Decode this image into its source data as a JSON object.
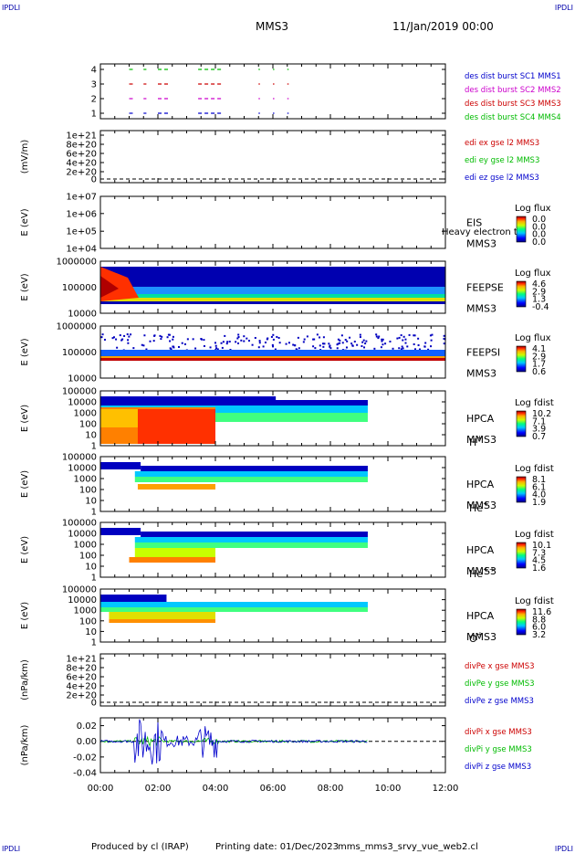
{
  "corner_label": "IPDLI",
  "header": {
    "mission": "MMS3",
    "datetime": "11/Jan/2019 00:00"
  },
  "footer": {
    "produced_by": "Produced by cl (IRAP)",
    "printing_date": "Printing date: 01/Dec/2023",
    "script": "mms_mms3_srvy_vue_web2.cl"
  },
  "time_axis": {
    "ticks": [
      "00:00",
      "02:00",
      "04:00",
      "06:00",
      "08:00",
      "10:00",
      "12:00"
    ],
    "range_hours": [
      0,
      12
    ]
  },
  "colors": {
    "mms1": "#0000cc",
    "mms2": "#cc00cc",
    "mms3": "#cc0000",
    "mms4": "#00bb00",
    "dashed": "#000000"
  },
  "panels": [
    {
      "id": "burst",
      "y_ticks": [
        "4",
        "3",
        "2",
        "1"
      ],
      "legend": [
        {
          "text": "des dist burst SC1 MMS1",
          "color": "#0000cc"
        },
        {
          "text": "des dist burst SC2 MMS2",
          "color": "#cc00cc"
        },
        {
          "text": "des dist burst SC3 MMS3",
          "color": "#cc0000"
        },
        {
          "text": "des dist burst SC4 MMS4",
          "color": "#00bb00"
        }
      ]
    },
    {
      "id": "edi",
      "ylabel": "(mV/m)",
      "y_ticks": [
        "1e+21",
        "8e+20",
        "6e+20",
        "4e+20",
        "2e+20",
        "0"
      ],
      "legend": [
        {
          "text": "edi ex gse l2 MMS3",
          "color": "#cc0000"
        },
        {
          "text": "edi ey gse l2 MMS3",
          "color": "#00bb00"
        },
        {
          "text": "edi ez gse l2 MMS3",
          "color": "#0000cc"
        }
      ]
    },
    {
      "id": "eis",
      "ylabel": "E (eV)",
      "y_ticks": [
        "1e+07",
        "1e+06",
        "1e+05",
        "1e+04"
      ],
      "labels": [
        "EIS",
        "MMS3"
      ],
      "overlay": "Heavy electron to",
      "colorbar": {
        "title": "Log flux",
        "ticks": [
          "0.0",
          "0.0",
          "0.0",
          "0.0"
        ]
      }
    },
    {
      "id": "feepse",
      "ylabel": "E (eV)",
      "y_ticks": [
        "1000000",
        "100000",
        "10000"
      ],
      "labels": [
        "FEEPSE",
        "MMS3"
      ],
      "colorbar": {
        "title": "Log flux",
        "ticks": [
          "4.6",
          "2.9",
          "1.3",
          "-0.4"
        ]
      }
    },
    {
      "id": "feepsi",
      "ylabel": "E (eV)",
      "y_ticks": [
        "1000000",
        "100000",
        "10000"
      ],
      "labels": [
        "FEEPSI",
        "MMS3"
      ],
      "colorbar": {
        "title": "Log flux",
        "ticks": [
          "4.1",
          "2.9",
          "1.7",
          "0.6"
        ]
      }
    },
    {
      "id": "hpca_h",
      "ylabel": "E (eV)",
      "y_ticks": [
        "100000",
        "10000",
        "1000",
        "100",
        "10",
        "1"
      ],
      "labels": [
        "HPCA",
        "MMS3"
      ],
      "species": "H",
      "charge": "+",
      "colorbar": {
        "title": "Log fdist",
        "ticks": [
          "10.2",
          "7.1",
          "3.9",
          "0.7"
        ]
      }
    },
    {
      "id": "hpca_he",
      "ylabel": "E (eV)",
      "y_ticks": [
        "100000",
        "10000",
        "1000",
        "100",
        "10",
        "1"
      ],
      "labels": [
        "HPCA",
        "MMS3"
      ],
      "species": "He",
      "charge": "+",
      "colorbar": {
        "title": "Log fdist",
        "ticks": [
          "8.1",
          "6.1",
          "4.0",
          "1.9"
        ]
      }
    },
    {
      "id": "hpca_he2",
      "ylabel": "E (eV)",
      "y_ticks": [
        "100000",
        "10000",
        "1000",
        "100",
        "10",
        "1"
      ],
      "labels": [
        "HPCA",
        "MMS3"
      ],
      "species": "He",
      "charge": "++",
      "colorbar": {
        "title": "Log fdist",
        "ticks": [
          "10.1",
          "7.3",
          "4.5",
          "1.6"
        ]
      }
    },
    {
      "id": "hpca_o",
      "ylabel": "E (eV)",
      "y_ticks": [
        "100000",
        "10000",
        "1000",
        "100",
        "10",
        "1"
      ],
      "labels": [
        "HPCA",
        "MMS3"
      ],
      "species": "O",
      "charge": "+",
      "colorbar": {
        "title": "Log fdist",
        "ticks": [
          "11.6",
          "8.8",
          "6.0",
          "3.2"
        ]
      }
    },
    {
      "id": "divpe",
      "ylabel": "(nPa/km)",
      "y_ticks": [
        "1e+21",
        "8e+20",
        "6e+20",
        "4e+20",
        "2e+20",
        "0"
      ],
      "legend": [
        {
          "text": "divPe x gse MMS3",
          "color": "#cc0000"
        },
        {
          "text": "divPe y gse MMS3",
          "color": "#00bb00"
        },
        {
          "text": "divPe z gse MMS3",
          "color": "#0000cc"
        }
      ]
    },
    {
      "id": "divpi",
      "ylabel": "(nPa/km)",
      "y_ticks": [
        "0.02",
        "0.00",
        "-0.02",
        "-0.04"
      ],
      "legend": [
        {
          "text": "divPi x gse MMS3",
          "color": "#cc0000"
        },
        {
          "text": "divPi y gse MMS3",
          "color": "#00bb00"
        },
        {
          "text": "divPi z gse MMS3",
          "color": "#0000cc"
        }
      ]
    }
  ],
  "chart_data": {
    "type": "line",
    "title": "MMS3",
    "x_ticks": [
      "00:00",
      "02:00",
      "04:00",
      "06:00",
      "08:00",
      "10:00",
      "12:00"
    ],
    "xlim_hours": [
      0,
      12
    ],
    "burst_intervals": [
      {
        "spacecraft": 1,
        "segments": [
          [
            1.0,
            1.2
          ],
          [
            1.5,
            1.6
          ],
          [
            2.0,
            2.4
          ],
          [
            3.4,
            4.2
          ],
          [
            5.5,
            5.55
          ],
          [
            6.0,
            6.05
          ],
          [
            6.5,
            6.55
          ]
        ]
      },
      {
        "spacecraft": 2,
        "segments": [
          [
            1.0,
            1.2
          ],
          [
            1.5,
            1.6
          ],
          [
            2.0,
            2.4
          ],
          [
            3.4,
            4.2
          ],
          [
            5.5,
            5.55
          ],
          [
            6.0,
            6.05
          ],
          [
            6.5,
            6.55
          ]
        ]
      },
      {
        "spacecraft": 3,
        "segments": [
          [
            1.0,
            1.2
          ],
          [
            1.5,
            1.6
          ],
          [
            2.0,
            2.4
          ],
          [
            3.4,
            4.2
          ],
          [
            5.5,
            5.55
          ],
          [
            6.0,
            6.05
          ],
          [
            6.5,
            6.55
          ]
        ]
      },
      {
        "spacecraft": 4,
        "segments": [
          [
            1.0,
            1.2
          ],
          [
            1.5,
            1.6
          ],
          [
            2.0,
            2.4
          ],
          [
            3.4,
            4.2
          ],
          [
            5.5,
            5.55
          ],
          [
            6.0,
            6.05
          ],
          [
            6.5,
            6.55
          ]
        ]
      }
    ],
    "hpca_data_end_hours": 9.3,
    "divpi_ylim": [
      -0.04,
      0.03
    ]
  }
}
